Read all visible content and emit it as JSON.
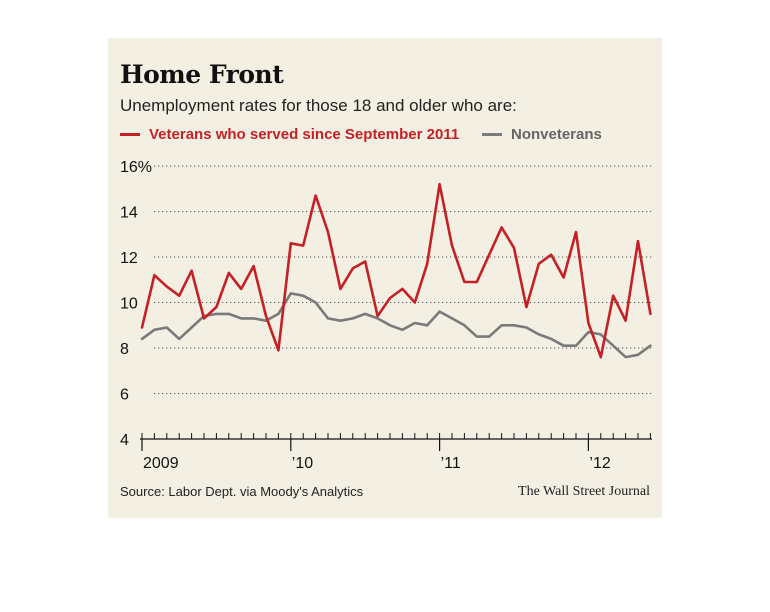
{
  "header": {
    "title": "Home Front",
    "subtitle": "Unemployment rates for those 18 and older who are:"
  },
  "legend": {
    "veterans": "Veterans who served since September 2011",
    "nonveterans": "Nonveterans"
  },
  "footer": {
    "source": "Source: Labor Dept. via Moody's Analytics",
    "credit": "The Wall Street Journal"
  },
  "colors": {
    "background": "#f3efe3",
    "veterans": "#c42126",
    "nonveterans": "#7a7a7a"
  },
  "chart_data": {
    "type": "line",
    "title": "Home Front",
    "subtitle": "Unemployment rates for those 18 and older who are:",
    "xlabel": "",
    "ylabel": "",
    "ylim": [
      4,
      16
    ],
    "yticks": [
      4,
      6,
      8,
      10,
      12,
      14,
      16
    ],
    "ytick_labels": [
      "4",
      "6",
      "8",
      "10",
      "12",
      "14",
      "16%"
    ],
    "grid": "horizontal dotted",
    "legend_position": "top",
    "x": [
      "Jan 2009",
      "Feb 2009",
      "Mar 2009",
      "Apr 2009",
      "May 2009",
      "Jun 2009",
      "Jul 2009",
      "Aug 2009",
      "Sep 2009",
      "Oct 2009",
      "Nov 2009",
      "Dec 2009",
      "Jan 2010",
      "Feb 2010",
      "Mar 2010",
      "Apr 2010",
      "May 2010",
      "Jun 2010",
      "Jul 2010",
      "Aug 2010",
      "Sep 2010",
      "Oct 2010",
      "Nov 2010",
      "Dec 2010",
      "Jan 2011",
      "Feb 2011",
      "Mar 2011",
      "Apr 2011",
      "May 2011",
      "Jun 2011",
      "Jul 2011",
      "Aug 2011",
      "Sep 2011",
      "Oct 2011",
      "Nov 2011",
      "Dec 2011",
      "Jan 2012",
      "Feb 2012",
      "Mar 2012",
      "Apr 2012",
      "May 2012",
      "Jun 2012"
    ],
    "year_labels": [
      {
        "label": "2009",
        "x": "Jan 2009"
      },
      {
        "label": "’10",
        "x": "Jan 2010"
      },
      {
        "label": "’11",
        "x": "Jan 2011"
      },
      {
        "label": "’12",
        "x": "Jan 2012"
      }
    ],
    "series": [
      {
        "name": "Veterans who served since September 2011",
        "color": "#c42126",
        "values": [
          8.9,
          11.2,
          10.7,
          10.3,
          11.4,
          9.3,
          9.8,
          11.3,
          10.6,
          11.6,
          9.4,
          7.9,
          12.6,
          12.5,
          14.7,
          13.1,
          10.6,
          11.5,
          11.8,
          9.4,
          10.2,
          10.6,
          10.0,
          11.7,
          15.2,
          12.5,
          10.9,
          10.9,
          12.1,
          13.3,
          12.4,
          9.8,
          11.7,
          12.1,
          11.1,
          13.1,
          9.1,
          7.6,
          10.3,
          9.2,
          12.7,
          9.5
        ]
      },
      {
        "name": "Nonveterans",
        "color": "#7a7a7a",
        "values": [
          8.4,
          8.8,
          8.9,
          8.4,
          8.9,
          9.4,
          9.5,
          9.5,
          9.3,
          9.3,
          9.2,
          9.5,
          10.4,
          10.3,
          10.0,
          9.3,
          9.2,
          9.3,
          9.5,
          9.3,
          9.0,
          8.8,
          9.1,
          9.0,
          9.6,
          9.3,
          9.0,
          8.5,
          8.5,
          9.0,
          9.0,
          8.9,
          8.6,
          8.4,
          8.1,
          8.1,
          8.7,
          8.6,
          8.1,
          7.6,
          7.7,
          8.1
        ]
      }
    ]
  }
}
